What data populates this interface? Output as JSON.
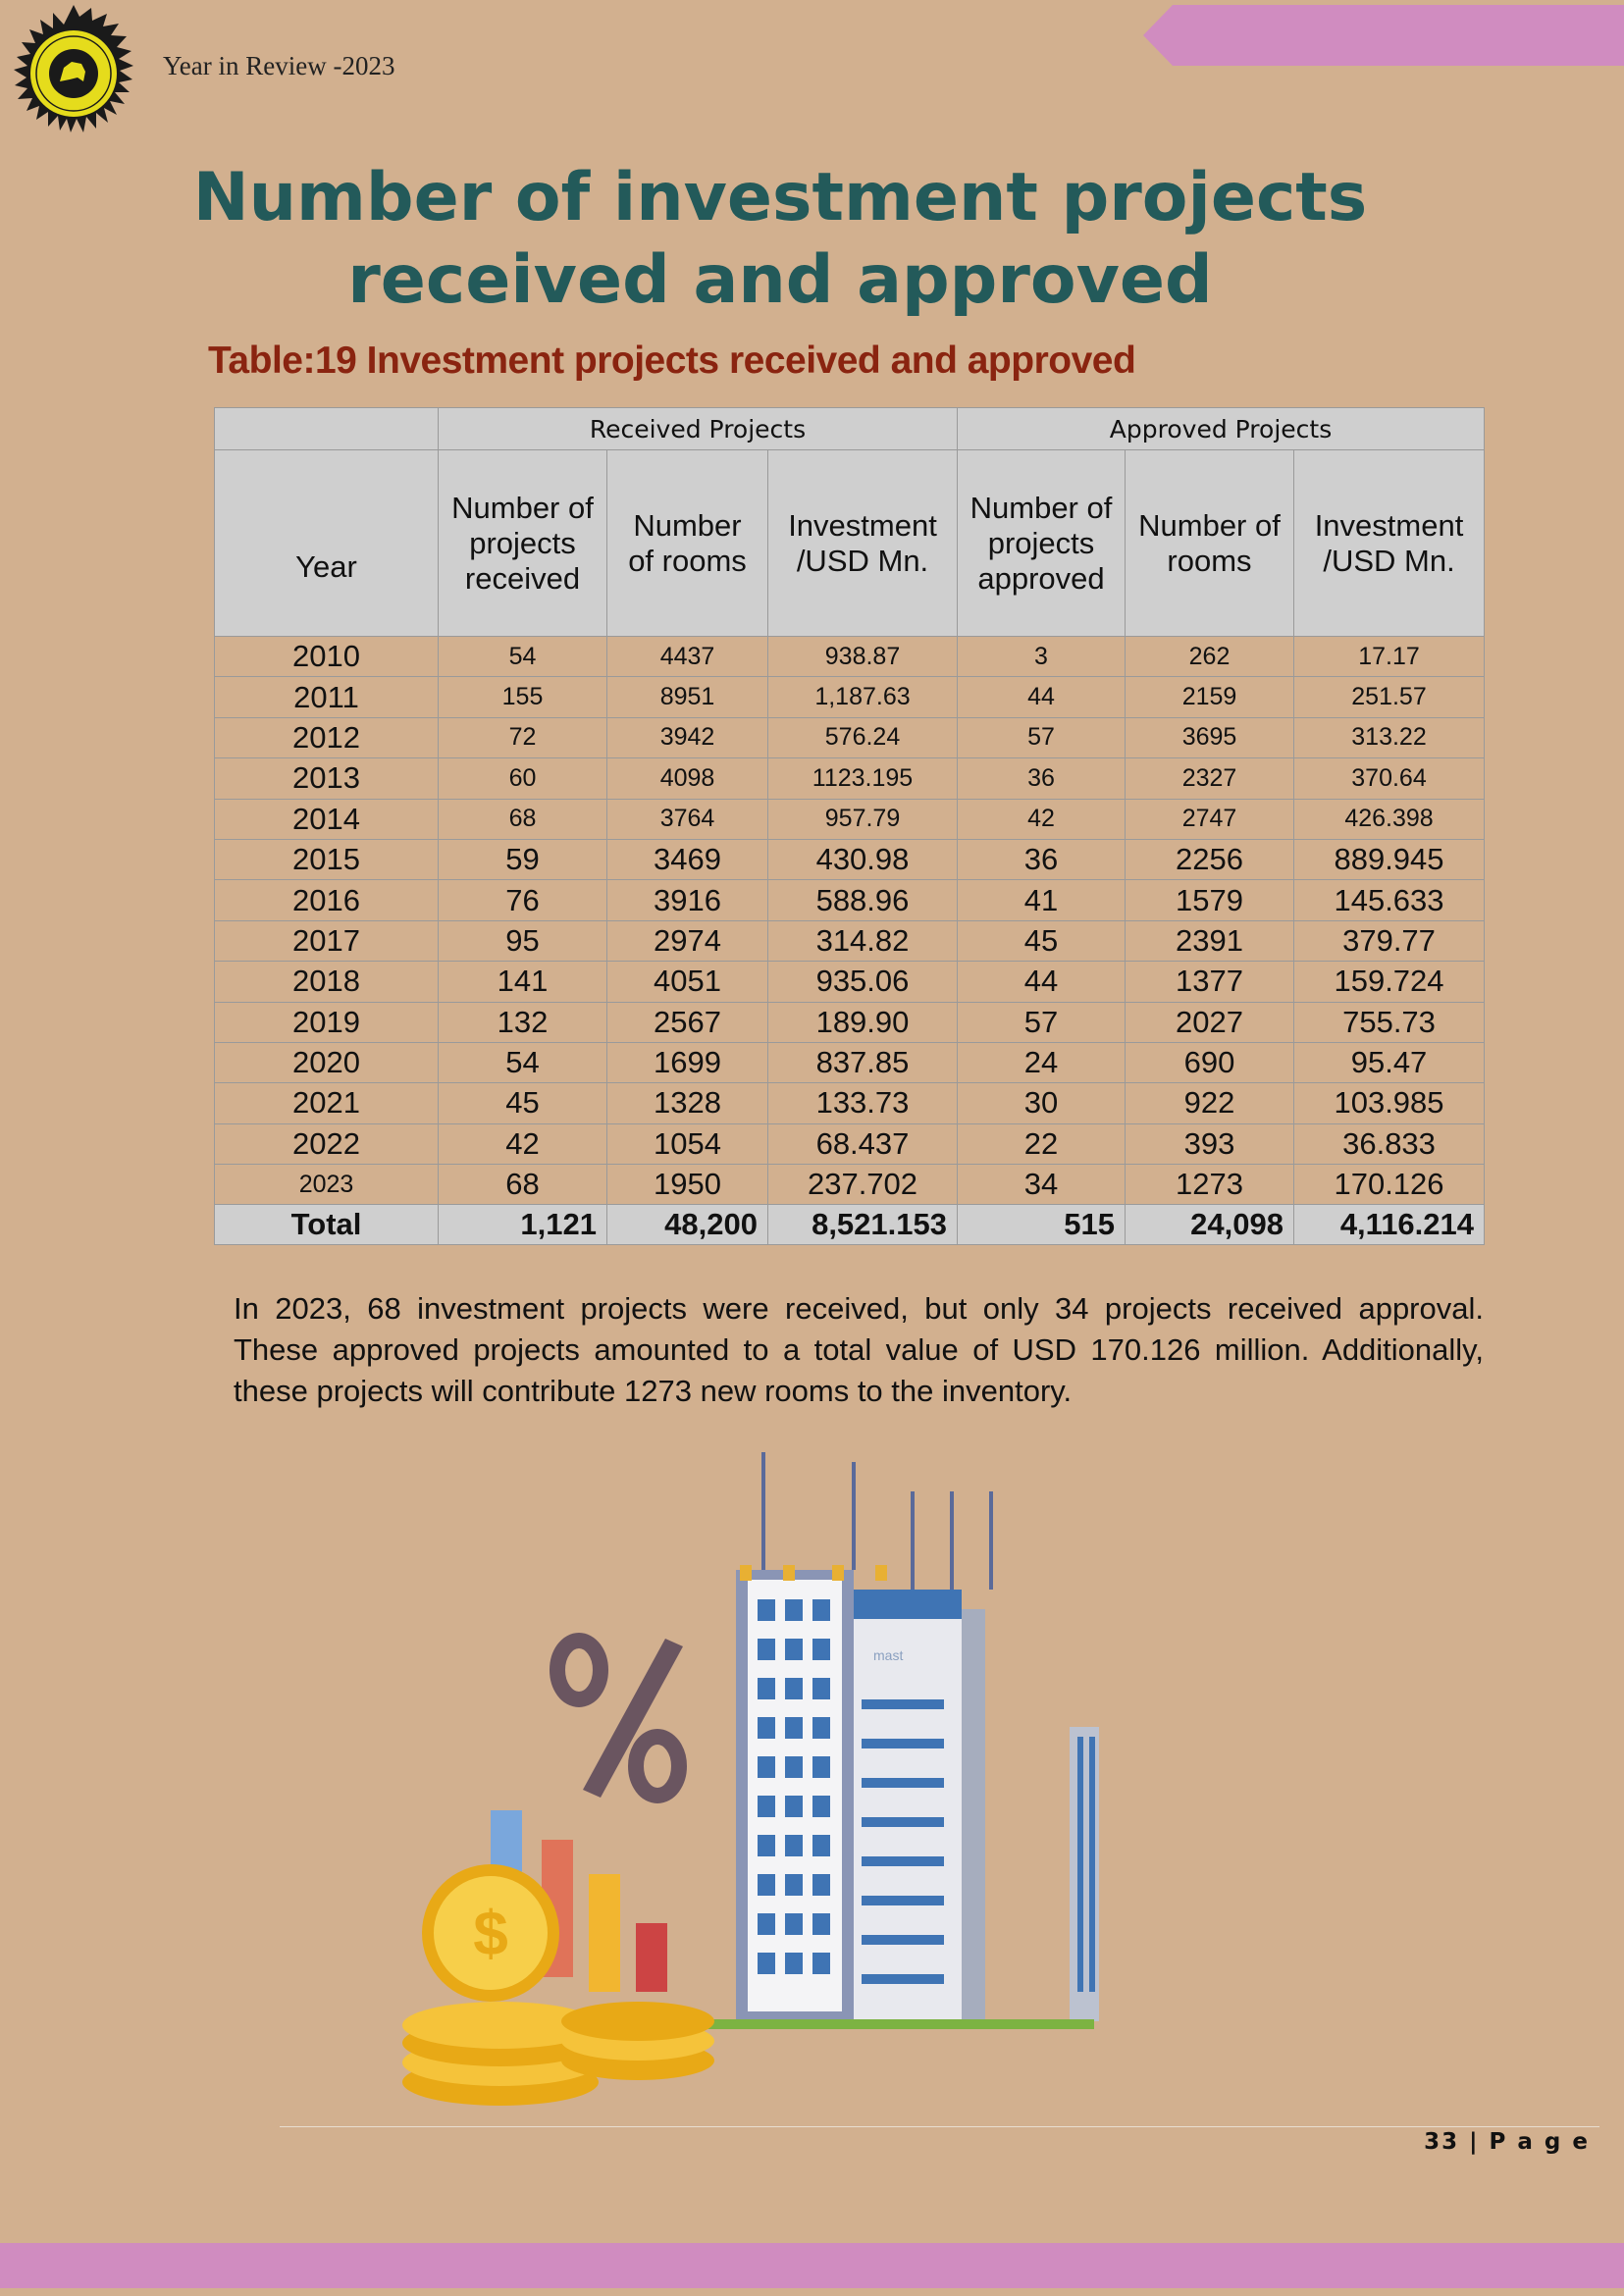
{
  "header": {
    "running_title": "Year in Review -2023",
    "colors": {
      "ribbon": "#d08cc0",
      "logo_rays": "#e5dc1c",
      "title": "#235a5a",
      "caption": "#8a2410"
    }
  },
  "title": {
    "line1": "Number of investment projects",
    "line2": "received and approved"
  },
  "table": {
    "caption": "Table:19 Investment projects received and approved",
    "group_headers": [
      "Received Projects",
      "Approved Projects"
    ],
    "columns": [
      "Year",
      "Number of projects received",
      "Number of rooms",
      "Investment /USD Mn.",
      "Number of projects approved",
      "Number of rooms",
      "Investment /USD Mn."
    ],
    "rows": [
      [
        "2010",
        "54",
        "4437",
        "938.87",
        "3",
        "262",
        "17.17"
      ],
      [
        "2011",
        "155",
        "8951",
        "1,187.63",
        "44",
        "2159",
        "251.57"
      ],
      [
        "2012",
        "72",
        "3942",
        "576.24",
        "57",
        "3695",
        "313.22"
      ],
      [
        "2013",
        "60",
        "4098",
        "1123.195",
        "36",
        "2327",
        "370.64"
      ],
      [
        "2014",
        "68",
        "3764",
        "957.79",
        "42",
        "2747",
        "426.398"
      ],
      [
        "2015",
        "59",
        "3469",
        "430.98",
        "36",
        "2256",
        "889.945"
      ],
      [
        "2016",
        "76",
        "3916",
        "588.96",
        "41",
        "1579",
        "145.633"
      ],
      [
        "2017",
        "95",
        "2974",
        "314.82",
        "45",
        "2391",
        "379.77"
      ],
      [
        "2018",
        "141",
        "4051",
        "935.06",
        "44",
        "1377",
        "159.724"
      ],
      [
        "2019",
        "132",
        "2567",
        "189.90",
        "57",
        "2027",
        "755.73"
      ],
      [
        "2020",
        "54",
        "1699",
        "837.85",
        "24",
        "690",
        "95.47"
      ],
      [
        "2021",
        "45",
        "1328",
        "133.73",
        "30",
        "922",
        "103.985"
      ],
      [
        "2022",
        "42",
        "1054",
        "68.437",
        "22",
        "393",
        "36.833"
      ],
      [
        "2023",
        "68",
        "1950",
        "237.702",
        "34",
        "1273",
        "170.126"
      ]
    ],
    "total": [
      "Total",
      "1,121",
      "48,200",
      "8,521.153",
      "515",
      "24,098",
      "4,116.214"
    ]
  },
  "paragraph": "In 2023, 68 investment projects were received, but only 34 projects received approval. These approved projects amounted to a total value of USD 170.126 million. Additionally, these projects will contribute 1273 new rooms to the inventory.",
  "illustration": {
    "icons": [
      "percent-icon",
      "dollar-coin-icon",
      "bar-chart-icon",
      "building-icon"
    ],
    "building_sign": "mast"
  },
  "footer": {
    "page_number": "33",
    "page_label": "| P a g e"
  }
}
